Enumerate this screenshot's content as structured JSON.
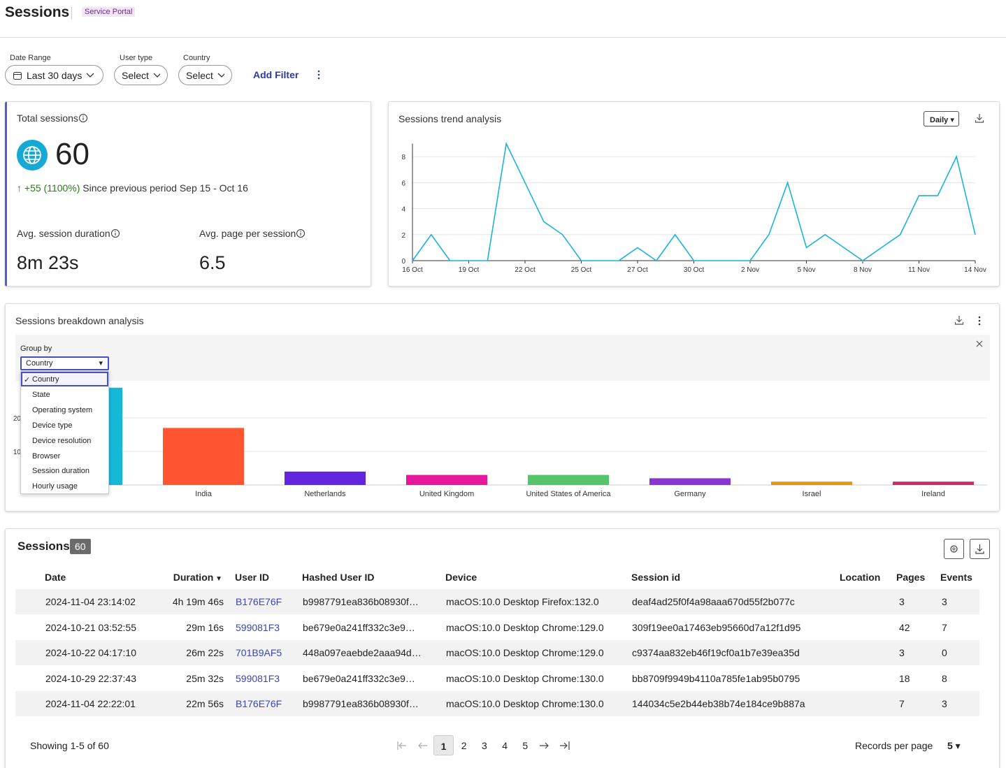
{
  "header": {
    "title": "Sessions",
    "badge": "Service Portal"
  },
  "filters": {
    "items": [
      {
        "label": "Date Range",
        "value": "Last 30 days"
      },
      {
        "label": "User type",
        "value": "Select"
      },
      {
        "label": "Country",
        "value": "Select"
      }
    ],
    "add": "Add Filter"
  },
  "kpis": {
    "total": {
      "label": "Total sessions",
      "value": "60",
      "change": "+55 (1100%)",
      "since": "Since previous period Sep 15 - Oct 16"
    },
    "duration": {
      "label": "Avg. session duration",
      "value": "8m 23s"
    },
    "pages": {
      "label": "Avg. page per session",
      "value": "6.5"
    }
  },
  "chart_data": [
    {
      "type": "line",
      "title": "Sessions trend analysis",
      "interval": "Daily",
      "categories": [
        "16 Oct",
        null,
        null,
        "19 Oct",
        null,
        null,
        "22 Oct",
        null,
        null,
        "25 Oct",
        null,
        null,
        "27 Oct",
        null,
        null,
        "30 Oct",
        null,
        null,
        "2 Nov",
        null,
        null,
        "5 Nov",
        null,
        null,
        "8 Nov",
        null,
        null,
        "11 Nov",
        null,
        null,
        "14 Nov"
      ],
      "values": [
        0,
        2,
        0,
        0,
        0,
        9,
        6,
        3,
        2,
        0,
        0,
        0,
        1,
        0,
        2,
        0,
        0,
        0,
        0,
        2,
        6,
        1,
        2,
        1,
        0,
        1,
        2,
        5,
        5,
        8,
        2
      ],
      "color": "#1ab4d8",
      "ylim": [
        0,
        9
      ],
      "yticks": [
        0,
        2,
        4,
        6,
        8
      ],
      "grid": true
    },
    {
      "type": "bar",
      "title": "Sessions breakdown analysis",
      "categories": [
        null,
        "India",
        "Netherlands",
        "United Kingdom",
        "United States of America",
        "Germany",
        "Israel",
        "Ireland"
      ],
      "values": [
        29,
        17,
        4,
        3,
        3,
        2,
        1,
        1
      ],
      "colors": [
        "#16b8d8",
        "#ff5530",
        "#6225e0",
        "#e6179a",
        "#56c46a",
        "#8b35d0",
        "#e5960f",
        "#cc2a6a"
      ],
      "ylim": [
        0,
        30
      ],
      "yticks": [
        10,
        20
      ],
      "grid": true
    }
  ],
  "group_by": {
    "label": "Group by",
    "selected": "Country",
    "options": [
      "Country",
      "State",
      "Operating system",
      "Device type",
      "Device resolution",
      "Browser",
      "Session duration",
      "Hourly usage"
    ]
  },
  "table": {
    "title": "Sessions",
    "count": "60",
    "columns": [
      "Date",
      "Duration",
      "User ID",
      "Hashed User ID",
      "Device",
      "Session id",
      "Location",
      "Pages",
      "Events"
    ],
    "rows": [
      {
        "date": "2024-11-04 23:14:02",
        "duration": "4h 19m 46s",
        "user": "B176E76F",
        "hashed": "b9987791ea836b08930f…",
        "device": "macOS:10.0 Desktop Firefox:132.0",
        "session": "deaf4ad25f0f4a98aaa670d55f2b077c",
        "pages": "3",
        "events": "3"
      },
      {
        "date": "2024-10-21 03:52:55",
        "duration": "29m 16s",
        "user": "599081F3",
        "hashed": "be679e0a241ff332c3e9…",
        "device": "macOS:10.0 Desktop Chrome:129.0",
        "session": "309f19ee0a17463eb95660d7a12f1d95",
        "pages": "42",
        "events": "7"
      },
      {
        "date": "2024-10-22 04:17:10",
        "duration": "26m 22s",
        "user": "701B9AF5",
        "hashed": "448a097eaebde2aaa94d…",
        "device": "macOS:10.0 Desktop Chrome:129.0",
        "session": "c9374aa832eb46f19cf0a1b7e39ea35d",
        "pages": "3",
        "events": "0"
      },
      {
        "date": "2024-10-29 22:37:43",
        "duration": "25m 32s",
        "user": "599081F3",
        "hashed": "be679e0a241ff332c3e9…",
        "device": "macOS:10.0 Desktop Chrome:130.0",
        "session": "bb8709f9949b4110a785fe1ab95b0795",
        "pages": "18",
        "events": "8"
      },
      {
        "date": "2024-11-04 22:22:01",
        "duration": "22m 56s",
        "user": "B176E76F",
        "hashed": "b9987791ea836b08930f…",
        "device": "macOS:10.0 Desktop Chrome:130.0",
        "session": "144034c5e2b44eb38b74e184ce9b887a",
        "pages": "7",
        "events": "3"
      }
    ]
  },
  "pagination": {
    "showing": "Showing 1-5 of 60",
    "pages": [
      "1",
      "2",
      "3",
      "4",
      "5"
    ],
    "per_page_label": "Records per page",
    "per_page": "5"
  }
}
